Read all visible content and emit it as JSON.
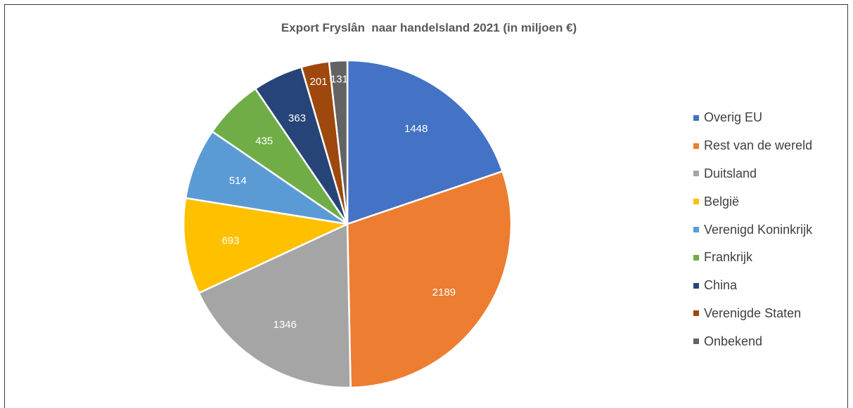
{
  "chart_data": {
    "type": "pie",
    "title": "Export Fryslân  naar handelsland 2021 (in miljoen €)",
    "categories": [
      "Overig EU",
      "Rest van de wereld",
      "Duitsland",
      "België",
      "Verenigd Koninkrijk",
      "Frankrijk",
      "China",
      "Verenigde Staten",
      "Onbekend"
    ],
    "values": [
      1448,
      2189,
      1346,
      693,
      514,
      435,
      363,
      201,
      131
    ],
    "data_labels": [
      "1448",
      "2189",
      "1346",
      "693",
      "514",
      "435",
      "363",
      "201",
      "131"
    ],
    "colors": [
      "#4472C4",
      "#ED7D31",
      "#A5A5A5",
      "#FFC000",
      "#5B9BD5",
      "#70AD47",
      "#264478",
      "#9E480E",
      "#636363"
    ],
    "legend_position": "right",
    "start_angle": "12 o'clock, clockwise"
  }
}
